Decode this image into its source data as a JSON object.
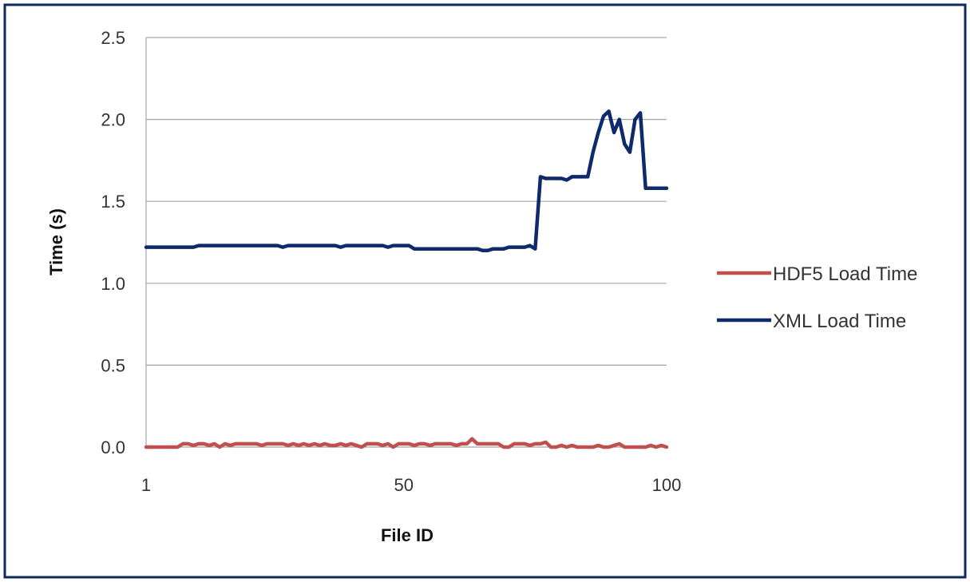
{
  "chart_data": {
    "type": "line",
    "xlabel": "File ID",
    "ylabel": "Time (s)",
    "xlim": [
      1,
      100
    ],
    "ylim": [
      0.0,
      2.5
    ],
    "x_ticks": [
      1,
      50,
      100
    ],
    "x_tick_labels": [
      "1",
      "50",
      "100"
    ],
    "y_ticks": [
      0.0,
      0.5,
      1.0,
      1.5,
      2.0,
      2.5
    ],
    "y_tick_labels": [
      "0.0",
      "0.5",
      "1.0",
      "1.5",
      "2.0",
      "2.5"
    ],
    "grid": "horizontal",
    "legend_position": "right",
    "x": [
      1,
      2,
      3,
      4,
      5,
      6,
      7,
      8,
      9,
      10,
      11,
      12,
      13,
      14,
      15,
      16,
      17,
      18,
      19,
      20,
      21,
      22,
      23,
      24,
      25,
      26,
      27,
      28,
      29,
      30,
      31,
      32,
      33,
      34,
      35,
      36,
      37,
      38,
      39,
      40,
      41,
      42,
      43,
      44,
      45,
      46,
      47,
      48,
      49,
      50,
      51,
      52,
      53,
      54,
      55,
      56,
      57,
      58,
      59,
      60,
      61,
      62,
      63,
      64,
      65,
      66,
      67,
      68,
      69,
      70,
      71,
      72,
      73,
      74,
      75,
      76,
      77,
      78,
      79,
      80,
      81,
      82,
      83,
      84,
      85,
      86,
      87,
      88,
      89,
      90,
      91,
      92,
      93,
      94,
      95,
      96,
      97,
      98,
      99,
      100
    ],
    "series": [
      {
        "name": "HDF5 Load Time",
        "color": "#c0504d",
        "values": [
          0.0,
          0.0,
          0.0,
          0.0,
          0.0,
          0.0,
          0.0,
          0.02,
          0.02,
          0.01,
          0.02,
          0.02,
          0.01,
          0.02,
          0.0,
          0.02,
          0.01,
          0.02,
          0.02,
          0.02,
          0.02,
          0.02,
          0.01,
          0.02,
          0.02,
          0.02,
          0.02,
          0.01,
          0.02,
          0.01,
          0.02,
          0.01,
          0.02,
          0.01,
          0.02,
          0.01,
          0.01,
          0.02,
          0.01,
          0.02,
          0.01,
          0.0,
          0.02,
          0.02,
          0.02,
          0.01,
          0.02,
          0.0,
          0.02,
          0.02,
          0.02,
          0.01,
          0.02,
          0.02,
          0.01,
          0.02,
          0.02,
          0.02,
          0.02,
          0.01,
          0.02,
          0.02,
          0.05,
          0.02,
          0.02,
          0.02,
          0.02,
          0.02,
          0.0,
          0.0,
          0.02,
          0.02,
          0.02,
          0.01,
          0.02,
          0.02,
          0.03,
          0.0,
          0.0,
          0.01,
          0.0,
          0.01,
          0.0,
          0.0,
          0.0,
          0.0,
          0.01,
          0.0,
          0.0,
          0.01,
          0.02,
          0.0,
          0.0,
          0.0,
          0.0,
          0.0,
          0.01,
          0.0,
          0.01,
          0.0
        ]
      },
      {
        "name": "XML Load Time",
        "color": "#0f2a6b",
        "values": [
          1.22,
          1.22,
          1.22,
          1.22,
          1.22,
          1.22,
          1.22,
          1.22,
          1.22,
          1.22,
          1.23,
          1.23,
          1.23,
          1.23,
          1.23,
          1.23,
          1.23,
          1.23,
          1.23,
          1.23,
          1.23,
          1.23,
          1.23,
          1.23,
          1.23,
          1.23,
          1.22,
          1.23,
          1.23,
          1.23,
          1.23,
          1.23,
          1.23,
          1.23,
          1.23,
          1.23,
          1.23,
          1.22,
          1.23,
          1.23,
          1.23,
          1.23,
          1.23,
          1.23,
          1.23,
          1.23,
          1.22,
          1.23,
          1.23,
          1.23,
          1.23,
          1.21,
          1.21,
          1.21,
          1.21,
          1.21,
          1.21,
          1.21,
          1.21,
          1.21,
          1.21,
          1.21,
          1.21,
          1.21,
          1.2,
          1.2,
          1.21,
          1.21,
          1.21,
          1.22,
          1.22,
          1.22,
          1.22,
          1.23,
          1.21,
          1.65,
          1.64,
          1.64,
          1.64,
          1.64,
          1.63,
          1.65,
          1.65,
          1.65,
          1.65,
          1.8,
          1.92,
          2.02,
          2.05,
          1.92,
          2.0,
          1.85,
          1.8,
          2.0,
          2.04,
          1.58,
          1.58,
          1.58,
          1.58,
          1.58
        ]
      }
    ]
  }
}
